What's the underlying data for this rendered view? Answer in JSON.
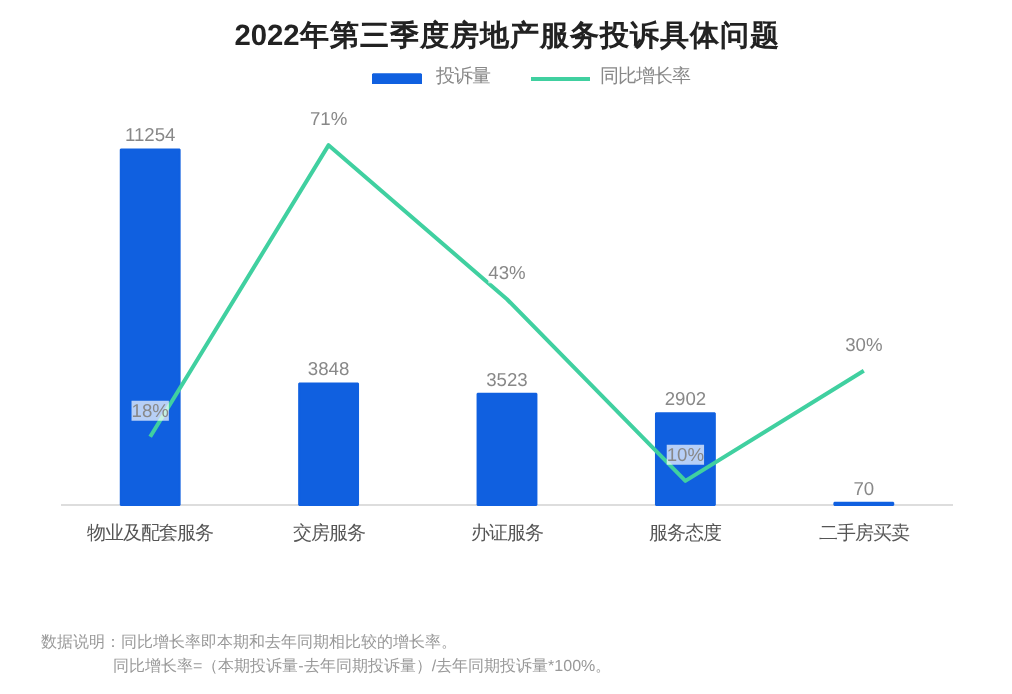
{
  "chart_data": {
    "type": "bar",
    "title": "2022年第三季度房地产服务投诉具体问题",
    "categories": [
      "物业及配套服务",
      "交房服务",
      "办证服务",
      "服务态度",
      "二手房买卖"
    ],
    "series": [
      {
        "name": "投诉量",
        "color": "#1060e0",
        "values": [
          11254,
          3848,
          3523,
          2902,
          70
        ],
        "value_labels": [
          "11254",
          "3848",
          "3523",
          "2902",
          "70"
        ]
      },
      {
        "name": "同比增长率",
        "type": "line",
        "axis": "y2",
        "color": "#40d0a0",
        "values": [
          18,
          71,
          43,
          10,
          30
        ],
        "value_labels": [
          "18%",
          "71%",
          "43%",
          "10%",
          "30%"
        ]
      }
    ],
    "legend": "top",
    "tick_labels": "x",
    "annotations": [
      "数据说明：同比增长率即本期和去年同期相比较的增长率。",
      "同比增长率=（本期投诉量-去年同期投诉量）/去年同期投诉量*100%。"
    ]
  }
}
